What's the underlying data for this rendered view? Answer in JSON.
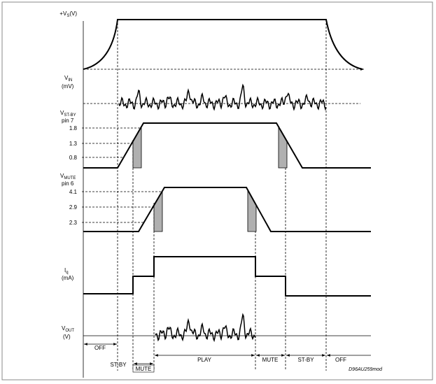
{
  "signals": {
    "vs": {
      "symbol": "+V",
      "sub": "S",
      "unit": "(V)"
    },
    "vin": {
      "symbol": "V",
      "sub": "IN",
      "unit": "(mV)"
    },
    "vstby": {
      "symbol": "V",
      "sub": "ST-BY",
      "pin": "pin 7",
      "levels": [
        "1.8",
        "1.3",
        "0.8"
      ]
    },
    "vmute": {
      "symbol": "V",
      "sub": "MUTE",
      "pin": "pin 6",
      "levels": [
        "4.1",
        "2.9",
        "2.3"
      ]
    },
    "iq": {
      "symbol": "I",
      "sub": "q",
      "unit": "(mA)"
    },
    "vout": {
      "symbol": "V",
      "sub": "OUT",
      "unit": "(V)"
    }
  },
  "phases": [
    "OFF",
    "ST-BY",
    "MUTE",
    "PLAY",
    "MUTE",
    "ST-BY",
    "OFF"
  ],
  "code": "D96AU259mod"
}
